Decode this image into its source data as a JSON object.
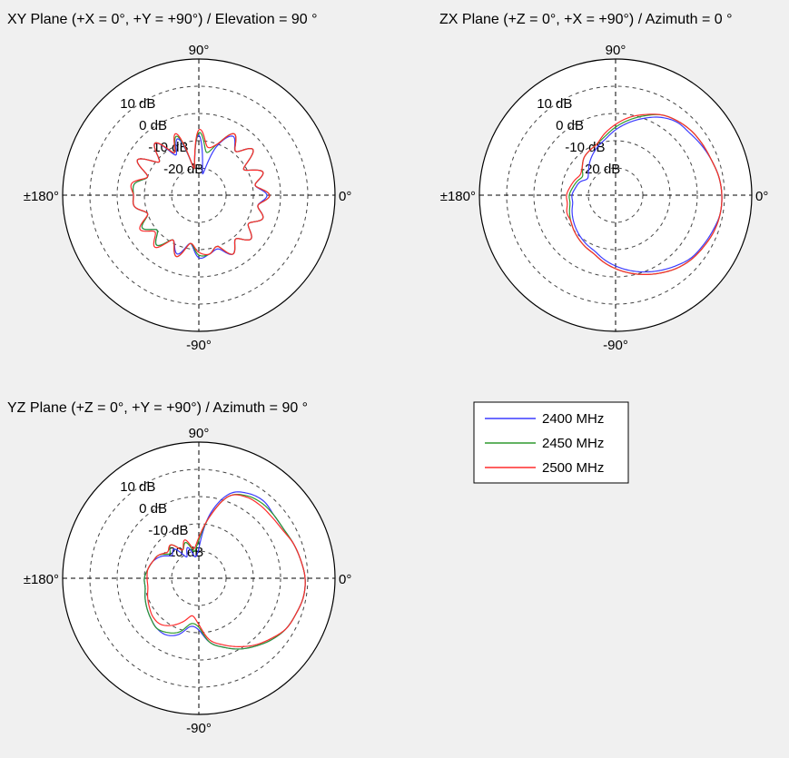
{
  "colors": {
    "background": "#f0f0f0",
    "plot_face": "#ffffff",
    "axes": "#000000",
    "grid": "#444444"
  },
  "legend": {
    "entries": [
      {
        "label": "2400 MHz",
        "color": "#3b3bff"
      },
      {
        "label": "2450 MHz",
        "color": "#2e9a2e"
      },
      {
        "label": "2500 MHz",
        "color": "#ff2b2b"
      }
    ]
  },
  "chart_data": [
    {
      "type": "polar",
      "title": "XY Plane (+X = 0°, +Y = +90°) / Elevation = 90 °",
      "rlim": [
        -30,
        20
      ],
      "ring_labels": [
        "10 dB",
        "0 dB",
        "-10 dB",
        "-20 dB"
      ],
      "ring_values": [
        10,
        0,
        -10,
        -20
      ],
      "angle_labels": {
        "right": "0°",
        "top": "90°",
        "left": "±180°",
        "bottom": "-90°"
      },
      "grid": true,
      "theta_deg": [
        0,
        10,
        20,
        30,
        40,
        50,
        60,
        70,
        80,
        90,
        100,
        110,
        120,
        130,
        140,
        150,
        160,
        170,
        180,
        190,
        200,
        210,
        220,
        230,
        240,
        250,
        260,
        270,
        280,
        290,
        300,
        310,
        320,
        330,
        340,
        350
      ],
      "series": [
        {
          "name": "2400 MHz",
          "values": [
            -5,
            -9,
            -5,
            -11,
            -4,
            -9,
            -5,
            -11,
            -22,
            -8,
            -20,
            -8,
            -13,
            -5,
            -11,
            -4,
            -10,
            -6,
            -6,
            -6,
            -10,
            -6,
            -10,
            -6,
            -11,
            -7,
            -12,
            -7,
            -8,
            -9,
            -5,
            -9,
            -5,
            -9,
            -5,
            -8
          ]
        },
        {
          "name": "2450 MHz",
          "values": [
            -4,
            -9,
            -5,
            -11,
            -4,
            -9,
            -4,
            -10,
            -14,
            -7,
            -20,
            -7,
            -12,
            -5,
            -11,
            -4,
            -10,
            -6,
            -6,
            -6,
            -10,
            -6,
            -10,
            -6,
            -11,
            -6,
            -12,
            -8,
            -8,
            -10,
            -5,
            -9,
            -5,
            -9,
            -5,
            -8
          ]
        },
        {
          "name": "2500 MHz",
          "values": [
            -4,
            -9,
            -5,
            -11,
            -4,
            -9,
            -4,
            -10,
            -12,
            -6,
            -20,
            -6,
            -12,
            -5,
            -11,
            -4,
            -10,
            -5,
            -6,
            -6,
            -10,
            -5,
            -9,
            -5,
            -11,
            -6,
            -12,
            -9,
            -8,
            -10,
            -5,
            -9,
            -5,
            -9,
            -5,
            -8
          ]
        }
      ]
    },
    {
      "type": "polar",
      "title": "ZX Plane (+Z = 0°, +X = +90°) / Azimuth = 0 °",
      "rlim": [
        -30,
        20
      ],
      "ring_labels": [
        "10 dB",
        "0 dB",
        "-10 dB",
        "-20 dB"
      ],
      "ring_values": [
        10,
        0,
        -10,
        -20
      ],
      "angle_labels": {
        "right": "0°",
        "top": "90°",
        "left": "±180°",
        "bottom": "-90°"
      },
      "grid": true,
      "theta_deg": [
        0,
        10,
        20,
        30,
        40,
        50,
        60,
        70,
        80,
        90,
        100,
        110,
        120,
        130,
        140,
        150,
        160,
        170,
        180,
        190,
        200,
        210,
        220,
        230,
        240,
        250,
        260,
        270,
        280,
        290,
        300,
        310,
        320,
        330,
        340,
        350
      ],
      "series": [
        {
          "name": "2400 MHz",
          "values": [
            9,
            8.5,
            7.5,
            6.5,
            5.5,
            5,
            3,
            0,
            -3,
            -6,
            -9,
            -11,
            -13,
            -15,
            -17,
            -18,
            -16,
            -15,
            -14,
            -14,
            -13,
            -12,
            -11,
            -10,
            -9,
            -8,
            -6,
            -4,
            -2,
            0,
            2,
            4,
            6,
            7,
            8,
            9
          ]
        },
        {
          "name": "2450 MHz",
          "values": [
            9,
            8.5,
            7.5,
            7,
            6.5,
            5.5,
            4,
            1,
            -2,
            -5,
            -8,
            -10,
            -11,
            -12,
            -14,
            -16,
            -15,
            -14,
            -13,
            -13,
            -12,
            -11,
            -10,
            -9,
            -8,
            -7,
            -5,
            -3,
            -1,
            1,
            3,
            5,
            6.5,
            7.5,
            8.5,
            9
          ]
        },
        {
          "name": "2500 MHz",
          "values": [
            9,
            8.5,
            7.5,
            7,
            6.5,
            5.5,
            4,
            1.5,
            -1,
            -4,
            -7,
            -10,
            -11,
            -12,
            -14,
            -15,
            -14,
            -13,
            -12,
            -12,
            -11,
            -11,
            -10,
            -9,
            -8,
            -7,
            -5,
            -3,
            -1,
            1,
            3,
            5,
            6.5,
            7.5,
            8.5,
            9
          ]
        }
      ]
    },
    {
      "type": "polar",
      "title": "YZ Plane (+Z = 0°, +Y = +90°) / Azimuth = 90 °",
      "rlim": [
        -30,
        20
      ],
      "ring_labels": [
        "10 dB",
        "0 dB",
        "-10 dB",
        "-20 dB"
      ],
      "ring_values": [
        10,
        0,
        -10,
        -20
      ],
      "angle_labels": {
        "right": "0°",
        "top": "90°",
        "left": "±180°",
        "bottom": "-90°"
      },
      "grid": true,
      "theta_deg": [
        0,
        10,
        20,
        30,
        40,
        50,
        60,
        70,
        80,
        90,
        100,
        110,
        120,
        130,
        140,
        150,
        160,
        170,
        180,
        190,
        200,
        210,
        220,
        230,
        240,
        250,
        260,
        270,
        280,
        290,
        300,
        310,
        320,
        330,
        340,
        350
      ],
      "series": [
        {
          "name": "2400 MHz",
          "values": [
            9,
            8,
            7,
            6,
            6,
            7,
            6,
            3,
            -6,
            -19,
            -22,
            -18,
            -21,
            -16,
            -17,
            -14,
            -12,
            -11,
            -10,
            -10,
            -9,
            -8,
            -7,
            -6,
            -6,
            -8,
            -12,
            -11,
            -6,
            -3,
            0,
            2.5,
            5,
            7,
            8,
            9
          ]
        },
        {
          "name": "2450 MHz",
          "values": [
            9,
            8,
            7,
            6,
            6,
            6,
            5,
            2,
            -7,
            -16,
            -20,
            -16,
            -18,
            -14,
            -16,
            -13,
            -12,
            -11,
            -10,
            -10,
            -9,
            -8,
            -7,
            -6,
            -7,
            -9,
            -13,
            -12,
            -6,
            -3,
            0,
            2.5,
            5,
            7,
            8,
            9
          ]
        },
        {
          "name": "2500 MHz",
          "values": [
            9,
            8,
            7,
            5.5,
            5,
            5,
            4.5,
            2,
            -7,
            -15,
            -19,
            -15,
            -18,
            -14,
            -15,
            -13,
            -12,
            -11,
            -11,
            -11,
            -10,
            -9,
            -8,
            -8,
            -10,
            -13,
            -16,
            -13,
            -7,
            -4,
            -1,
            2,
            4.5,
            7,
            8,
            9
          ]
        }
      ]
    }
  ]
}
